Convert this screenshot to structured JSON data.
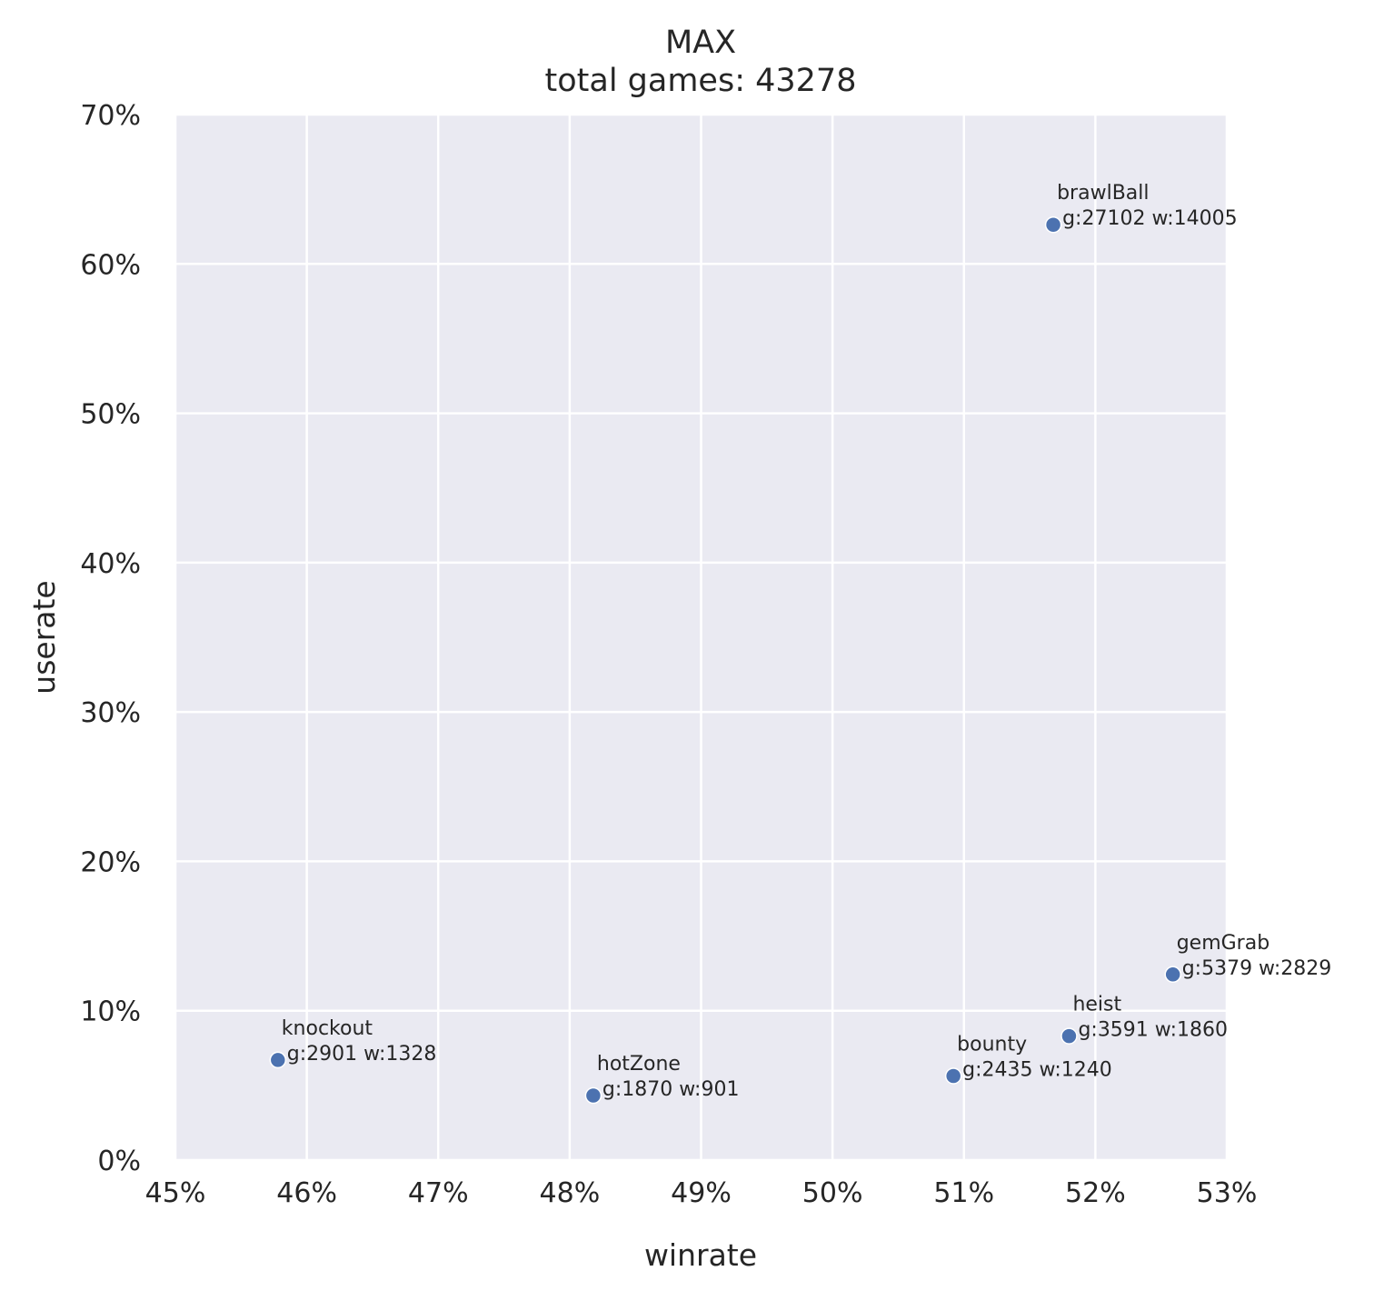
{
  "chart_data": {
    "type": "scatter",
    "title": "MAX",
    "subtitle": "total games: 43278",
    "xlabel": "winrate",
    "ylabel": "userate",
    "xlim": [
      0.45,
      0.53
    ],
    "ylim": [
      0.0,
      0.7
    ],
    "x_ticks": [
      0.45,
      0.46,
      0.47,
      0.48,
      0.49,
      0.5,
      0.51,
      0.52,
      0.53
    ],
    "x_tick_labels": [
      "45%",
      "46%",
      "47%",
      "48%",
      "49%",
      "50%",
      "51%",
      "52%",
      "53%"
    ],
    "y_ticks": [
      0.0,
      0.1,
      0.2,
      0.3,
      0.4,
      0.5,
      0.6,
      0.7
    ],
    "y_tick_labels": [
      "0%",
      "10%",
      "20%",
      "30%",
      "40%",
      "50%",
      "60%",
      "70%"
    ],
    "grid": true,
    "colors": {
      "background": "#eaeaf2",
      "grid": "#ffffff",
      "marker": "#4c72b0",
      "marker_edge": "#ffffff"
    },
    "points": [
      {
        "name": "brawlBall",
        "stats": "g:27102 w:14005",
        "x": 0.5168,
        "y": 0.6262
      },
      {
        "name": "gemGrab",
        "stats": "g:5379 w:2829",
        "x": 0.5259,
        "y": 0.1243
      },
      {
        "name": "heist",
        "stats": "g:3591 w:1860",
        "x": 0.518,
        "y": 0.083
      },
      {
        "name": "knockout",
        "stats": "g:2901 w:1328",
        "x": 0.4578,
        "y": 0.067
      },
      {
        "name": "bounty",
        "stats": "g:2435 w:1240",
        "x": 0.5092,
        "y": 0.0563
      },
      {
        "name": "hotZone",
        "stats": "g:1870 w:901",
        "x": 0.4818,
        "y": 0.0432
      }
    ]
  }
}
